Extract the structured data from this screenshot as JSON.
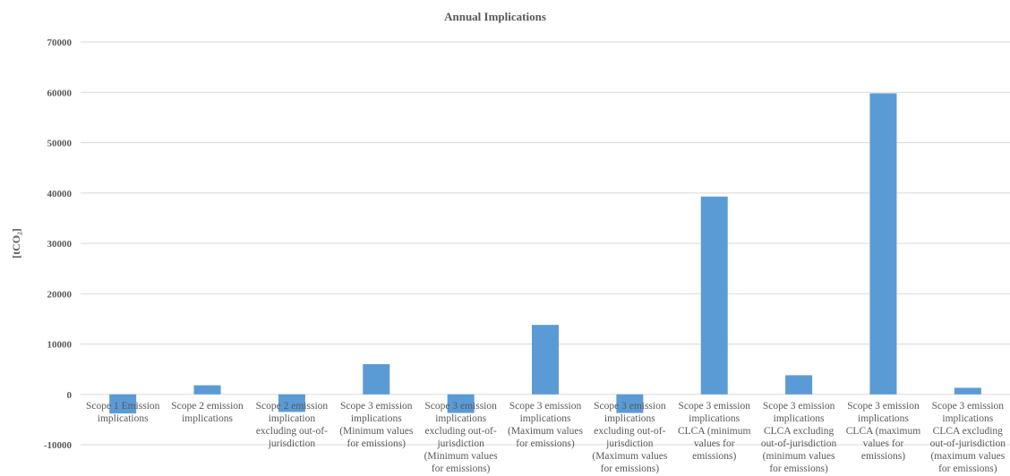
{
  "chart_data": {
    "type": "bar",
    "title": "Annual Implications",
    "xlabel": "",
    "ylabel": "[tCO₂]",
    "ylim": [
      -10000,
      70000
    ],
    "yticks": [
      -10000,
      0,
      10000,
      20000,
      30000,
      40000,
      50000,
      60000,
      70000
    ],
    "grid": true,
    "legend": "none",
    "bar_color": "#5b9bd5",
    "categories": [
      [
        "Scope 1 Emission",
        "implications"
      ],
      [
        "Scope 2 emission",
        "implications"
      ],
      [
        "Scope 2 emission",
        "implication",
        "excluding out-of-",
        "jurisdiction"
      ],
      [
        "Scope 3 emission",
        "implications",
        "(Minimum values",
        "for emissions)"
      ],
      [
        "Scope 3 emission",
        "implications",
        "excluding out-of-",
        "jurisdiction",
        "(Minimum values",
        "for emissions)"
      ],
      [
        "Scope 3 emission",
        "implications",
        "(Maximum values",
        "for emissions)"
      ],
      [
        "Scope 3 emission",
        "implications",
        "excluding out-of-",
        "jurisdiction",
        "(Maximum values",
        "for emissions)"
      ],
      [
        "Scope 3 emission",
        "implications",
        "CLCA (minimum",
        "values for",
        "emissions)"
      ],
      [
        "Scope 3 emission",
        "implications",
        "CLCA excluding",
        "out-of-jurisdiction",
        "(minimum values",
        "for emissions)"
      ],
      [
        "Scope 3 emission",
        "implications",
        "CLCA (maximum",
        "values for",
        "emissions)"
      ],
      [
        "Scope 3 emission",
        "implications",
        "CLCA excluding",
        "out-of-jurisdiction",
        "(maximum values",
        "for emissions)"
      ]
    ],
    "values": [
      -3800,
      1800,
      -3500,
      6000,
      -3700,
      13800,
      -3700,
      39300,
      3800,
      59800,
      1300
    ]
  }
}
